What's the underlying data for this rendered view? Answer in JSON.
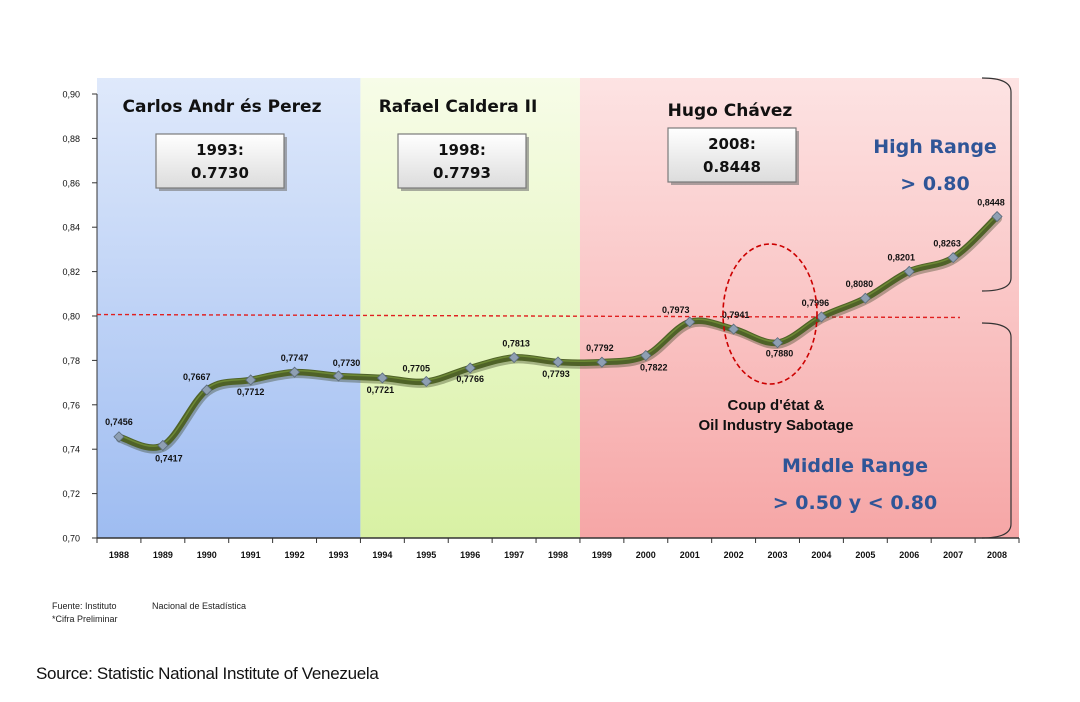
{
  "chart_data": {
    "type": "line",
    "x": [
      1988,
      1989,
      1990,
      1991,
      1992,
      1993,
      1994,
      1995,
      1996,
      1997,
      1998,
      1999,
      2000,
      2001,
      2002,
      2003,
      2004,
      2005,
      2006,
      2007,
      2008
    ],
    "x_labels": [
      "1988",
      "1989",
      "1990",
      "1991",
      "1992",
      "1993",
      "1994",
      "1995",
      "1996",
      "1997",
      "1998",
      "1999",
      "2000",
      "2001",
      "2002",
      "2003",
      "2004",
      "2005",
      "2006",
      "2007",
      "2008"
    ],
    "values": [
      0.7456,
      0.7417,
      0.7667,
      0.7712,
      0.7747,
      0.773,
      0.7721,
      0.7705,
      0.7766,
      0.7813,
      0.7793,
      0.7792,
      0.7822,
      0.7973,
      0.7941,
      0.788,
      0.7996,
      0.808,
      0.8201,
      0.8263,
      0.8448
    ],
    "data_labels": [
      "0,7456",
      "0,7417",
      "0,7667",
      "0,7712",
      "0,7747",
      "0,7730",
      "0,7721",
      "0,7705",
      "0,7766",
      "0,7813",
      "0,7793",
      "0,7792",
      "0,7822",
      "0,7973",
      "0,7941",
      "0,7880",
      "0,7996",
      "0,8080",
      "0,8201",
      "0,8263",
      "0,8448"
    ],
    "ylim": [
      0.7,
      0.9
    ],
    "y_ticks": [
      0.7,
      0.72,
      0.74,
      0.76,
      0.78,
      0.8,
      0.82,
      0.84,
      0.86,
      0.88,
      0.9
    ],
    "y_tick_labels": [
      "0,70",
      "0,72",
      "0,74",
      "0,76",
      "0,78",
      "0,80",
      "0,82",
      "0,84",
      "0,86",
      "0,88",
      "0,90"
    ],
    "threshold": 0.8,
    "periods": [
      {
        "name": "Carlos Andr és Perez",
        "start": 1988,
        "end": 1993,
        "box_year": "1993:",
        "box_value": "0.7730",
        "color_top": "#dfe9fb",
        "color_bottom": "#9ebcf1"
      },
      {
        "name": "Rafael Caldera II",
        "start": 1994,
        "end": 1998,
        "box_year": "1998:",
        "box_value": "0.7793",
        "color_top": "#f7fce8",
        "color_bottom": "#d8f1a4"
      },
      {
        "name": "Hugo Chávez",
        "start": 1999,
        "end": 2008,
        "box_year": "2008:",
        "box_value": "0.8448",
        "color_top": "#fde3e3",
        "color_bottom": "#f6a6a6"
      }
    ],
    "annotations": {
      "coup_line1": "Coup d'état &",
      "coup_line2": "Oil Industry Sabotage",
      "high_range_title": "High Range",
      "high_range_value": "> 0.80",
      "middle_range_title": "Middle Range",
      "middle_range_value": "> 0.50  y  < 0.80"
    },
    "colors": {
      "line": "#4f6228",
      "line_highlight": "#7a9a3a",
      "marker": "#8e9fb2",
      "threshold": "#e02020",
      "annotation_blue": "#2f5597",
      "ellipse": "#cc0000"
    }
  },
  "notes": {
    "fuente_left": "Fuente: Instituto",
    "fuente_right": "Nacional de Estadística",
    "preliminar": "*Cifra Preliminar"
  },
  "source": "Source: Statistic National Institute of Venezuela"
}
